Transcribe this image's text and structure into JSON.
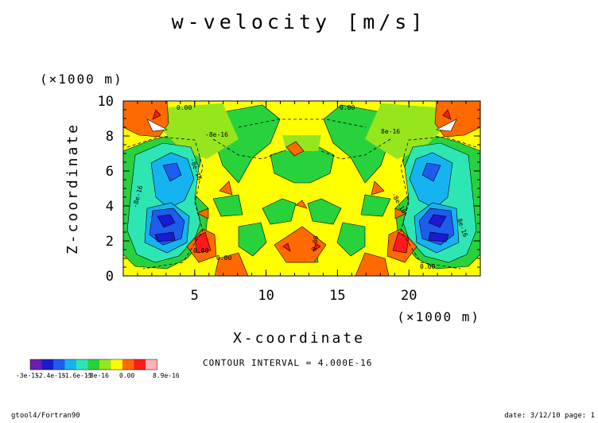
{
  "chart_data": {
    "type": "heatmap",
    "title": "w-velocity [m/s]",
    "xlabel": "X-coordinate",
    "ylabel": "Z-coordinate",
    "x_unit": "(×1000 m)",
    "y_unit": "(×1000 m)",
    "xlim": [
      0,
      25
    ],
    "ylim": [
      0,
      10
    ],
    "xticks": [
      "5",
      "10",
      "15",
      "20"
    ],
    "yticks": [
      "0",
      "2",
      "4",
      "6",
      "8",
      "10"
    ],
    "levels": [
      -3e-15,
      -2.6e-15,
      -2.4e-15,
      -2e-15,
      -1.6e-15,
      -1.2e-15,
      -8e-16,
      -4e-16,
      0,
      4e-16,
      8e-16,
      8.9e-16
    ],
    "level_colors": [
      "#6a1fb0",
      "#1a1ad0",
      "#1e5cf0",
      "#15b4f0",
      "#2de6b4",
      "#28d23c",
      "#96e61e",
      "#ffff00",
      "#ff6a00",
      "#ff1a1a",
      "#ffb4b4"
    ],
    "colorbar_labels": [
      "-3e-15",
      "-2.4e-15",
      "-1.6e-15",
      "-8e-16",
      "0.00",
      "8.9e-16"
    ],
    "contour_labels": [
      "0.00",
      "0.00",
      "-8e-16",
      "-8e-16",
      "8e-16",
      "-8e-16",
      "8e-16",
      "-8e-16",
      "0.00",
      "0.00",
      "0.00",
      "0.00"
    ],
    "contour_interval": "CONTOUR INTERVAL = 4.000E-16",
    "grid": false
  },
  "footer": {
    "left": "gtool4/Fortran90",
    "right": "date: 3/12/10 page: 1"
  }
}
